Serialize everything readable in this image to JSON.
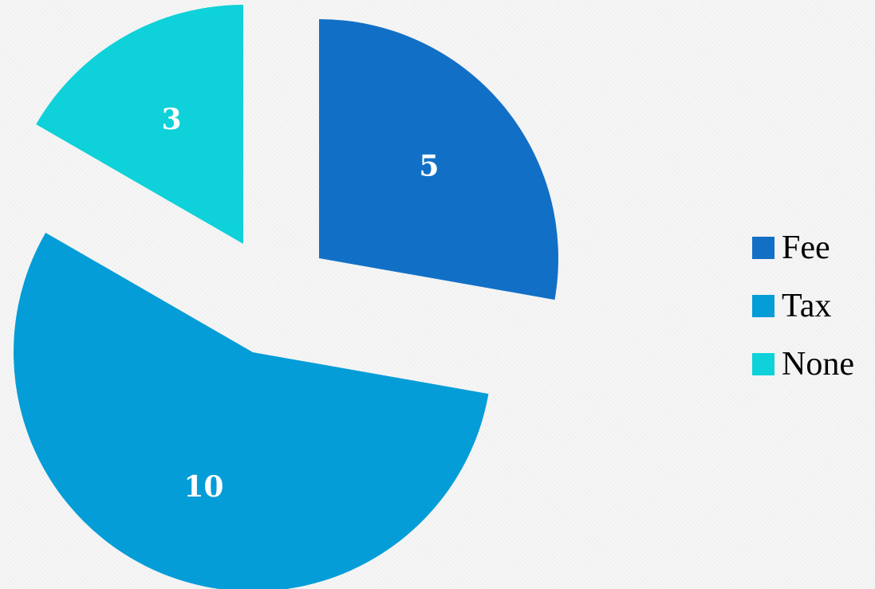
{
  "chart_data": {
    "type": "pie",
    "exploded": true,
    "start_angle": "top, clockwise",
    "categories": [
      "Fee",
      "Tax",
      "None"
    ],
    "values": [
      5,
      10,
      3
    ],
    "data_labels": [
      "5",
      "10",
      "3"
    ],
    "colors": [
      "#1170c6",
      "#049dd7",
      "#0fd1d9"
    ],
    "legend": {
      "position": "right",
      "entries": [
        "Fee",
        "Tax",
        "None"
      ]
    },
    "title": "",
    "label_color": "#ffffff"
  }
}
